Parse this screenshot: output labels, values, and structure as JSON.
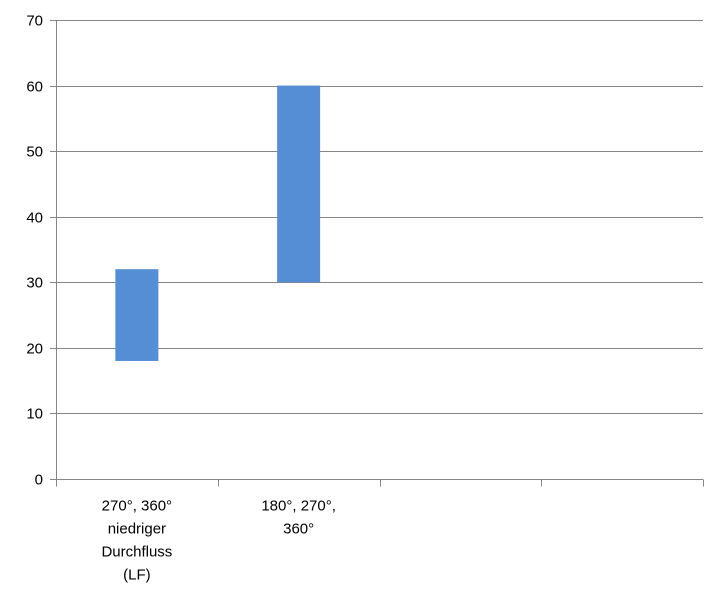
{
  "chart_data": {
    "type": "bar",
    "subtype": "floating-range",
    "categories": [
      [
        "270°, 360°",
        "niedriger",
        "Durchfluss",
        "(LF)"
      ],
      [
        "180°, 270°,",
        "360°"
      ],
      [],
      []
    ],
    "series": [
      {
        "ranges": [
          [
            18,
            32
          ],
          [
            30,
            60
          ],
          null,
          null
        ]
      }
    ],
    "ylim": [
      0,
      70
    ],
    "yticks": [
      0,
      10,
      20,
      30,
      40,
      50,
      60,
      70
    ],
    "grid": true,
    "legend": "none",
    "colors": {
      "bar": "#558ed5",
      "grid": "#868686",
      "axis": "#868686"
    }
  }
}
